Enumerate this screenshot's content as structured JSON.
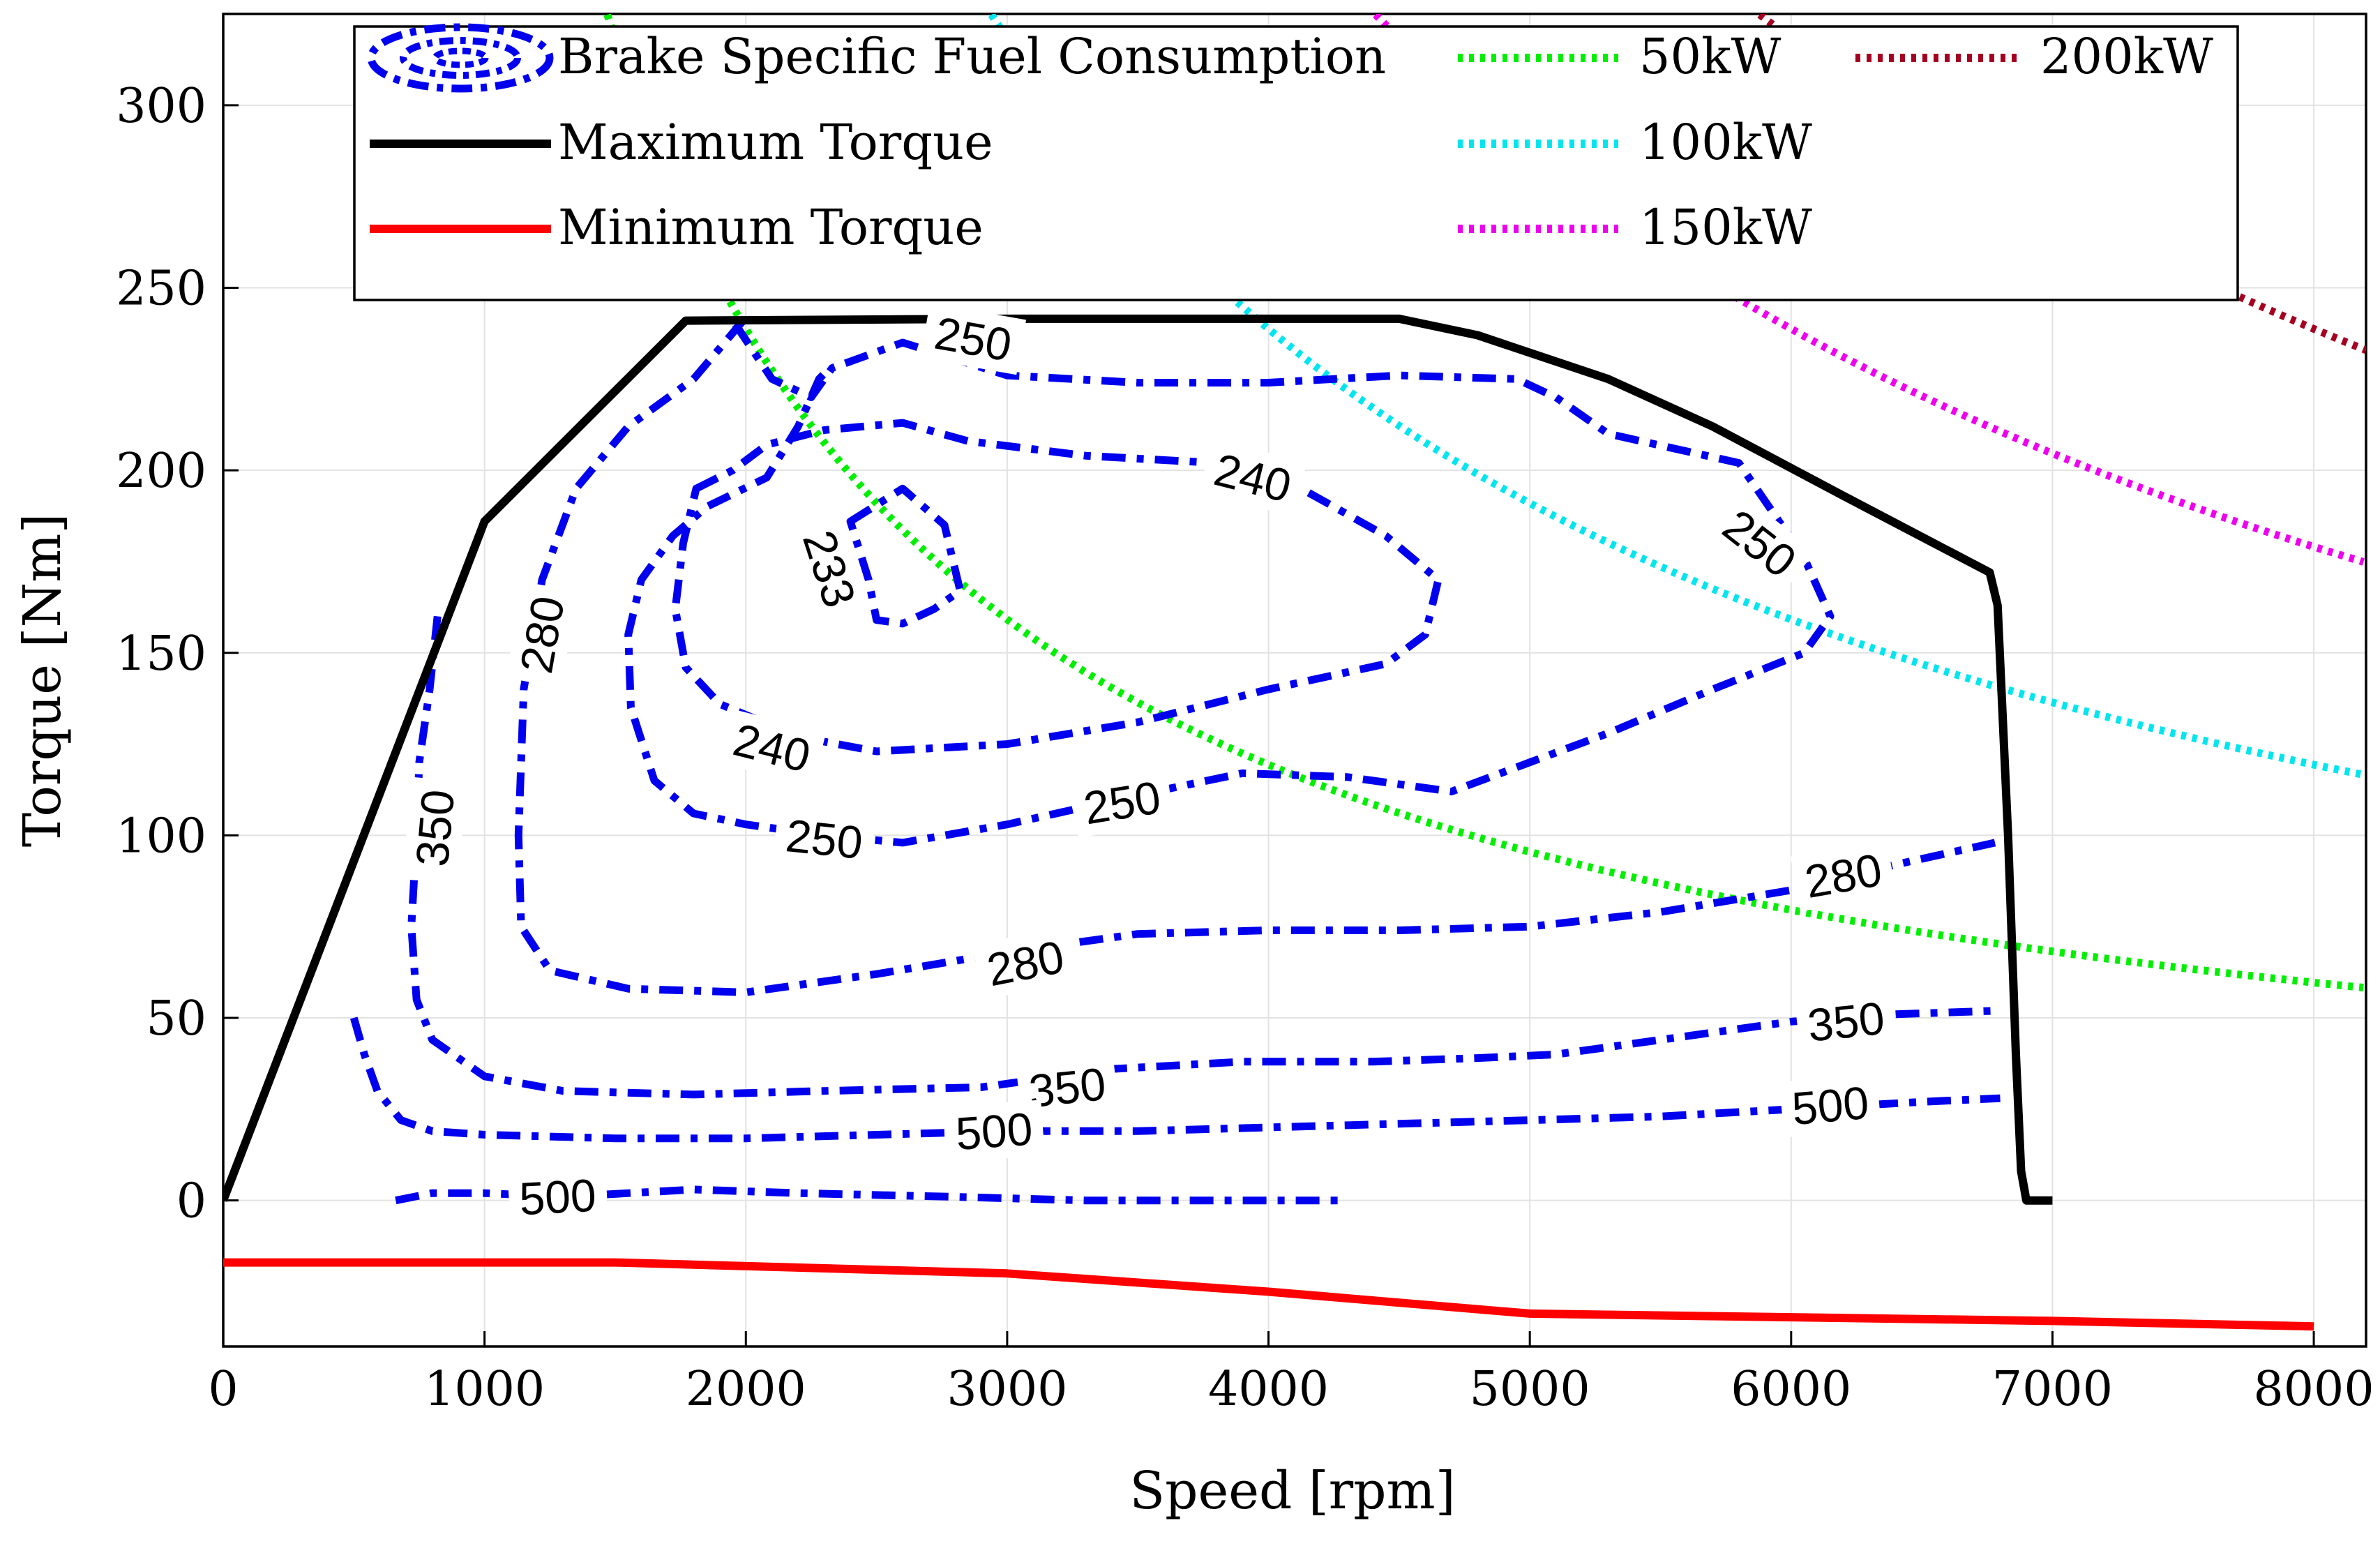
{
  "chart_data": {
    "type": "line",
    "title": "",
    "xlabel": "Speed [rpm]",
    "ylabel": "Torque [Nm]",
    "xlim": [
      0,
      8200
    ],
    "ylim": [
      -40,
      325
    ],
    "grid": true,
    "legend_position": "top",
    "x_ticks": [
      {
        "value": 0,
        "label": "0"
      },
      {
        "value": 1000,
        "label": "1000"
      },
      {
        "value": 2000,
        "label": "2000"
      },
      {
        "value": 3000,
        "label": "3000"
      },
      {
        "value": 4000,
        "label": "4000"
      },
      {
        "value": 5000,
        "label": "5000"
      },
      {
        "value": 6000,
        "label": "6000"
      },
      {
        "value": 7000,
        "label": "7000"
      },
      {
        "value": 8000,
        "label": "8000"
      }
    ],
    "y_ticks": [
      {
        "value": 0,
        "label": "0"
      },
      {
        "value": 50,
        "label": "50"
      },
      {
        "value": 100,
        "label": "100"
      },
      {
        "value": 150,
        "label": "150"
      },
      {
        "value": 200,
        "label": "200"
      },
      {
        "value": 250,
        "label": "250"
      },
      {
        "value": 300,
        "label": "300"
      }
    ],
    "colors": {
      "bsfc": "#0000ee",
      "max_torque": "#000000",
      "min_torque": "#ff0000",
      "p50": "#00ee00",
      "p100": "#00e5ee",
      "p150": "#ee00ee",
      "p200": "#a50021"
    },
    "legend": [
      {
        "key": "bsfc",
        "label": "Brake Specific Fuel Consumption"
      },
      {
        "key": "max_torque",
        "label": "Maximum Torque"
      },
      {
        "key": "min_torque",
        "label": "Minimum Torque"
      },
      {
        "key": "p50",
        "label": "50kW"
      },
      {
        "key": "p100",
        "label": "100kW"
      },
      {
        "key": "p150",
        "label": "150kW"
      },
      {
        "key": "p200",
        "label": "200kW"
      }
    ],
    "max_torque": {
      "name": "Maximum Torque",
      "points": [
        [
          0,
          0
        ],
        [
          1000,
          186
        ],
        [
          1770,
          241
        ],
        [
          3000,
          241.5
        ],
        [
          4500,
          241.5
        ],
        [
          4800,
          237
        ],
        [
          5300,
          225
        ],
        [
          5700,
          212
        ],
        [
          6200,
          193
        ],
        [
          6760,
          172
        ],
        [
          6790,
          163
        ],
        [
          6830,
          100
        ],
        [
          6860,
          40
        ],
        [
          6880,
          8
        ],
        [
          6900,
          0
        ],
        [
          7000,
          0
        ]
      ]
    },
    "min_torque": {
      "name": "Minimum Torque",
      "points": [
        [
          0,
          -17
        ],
        [
          1500,
          -17
        ],
        [
          3000,
          -20
        ],
        [
          4000,
          -25
        ],
        [
          5000,
          -31
        ],
        [
          6000,
          -32
        ],
        [
          7000,
          -33
        ],
        [
          8000,
          -34.5
        ]
      ]
    },
    "power_lines": [
      {
        "name": "50kW",
        "power_kw": 50,
        "x_range": [
          1470,
          8200
        ]
      },
      {
        "name": "100kW",
        "power_kw": 100,
        "x_range": [
          2940,
          8200
        ]
      },
      {
        "name": "150kW",
        "power_kw": 150,
        "x_range": [
          4410,
          8200
        ]
      },
      {
        "name": "200kW",
        "power_kw": 200,
        "x_range": [
          5880,
          8200
        ]
      }
    ],
    "bsfc_contours": [
      {
        "level": "233",
        "closed": true,
        "points": [
          [
            2400,
            186
          ],
          [
            2600,
            195
          ],
          [
            2760,
            185
          ],
          [
            2820,
            167
          ],
          [
            2720,
            162
          ],
          [
            2600,
            158
          ],
          [
            2500,
            159
          ],
          [
            2470,
            170
          ]
        ]
      },
      {
        "level": "240",
        "closed": true,
        "points": [
          [
            1810,
            195
          ],
          [
            1950,
            200
          ],
          [
            2080,
            207
          ],
          [
            2300,
            211
          ],
          [
            2600,
            213
          ],
          [
            2850,
            208
          ],
          [
            3300,
            204
          ],
          [
            3800,
            202
          ],
          [
            4100,
            196
          ],
          [
            4450,
            182
          ],
          [
            4650,
            170
          ],
          [
            4600,
            155
          ],
          [
            4450,
            147
          ],
          [
            4000,
            140
          ],
          [
            3500,
            131
          ],
          [
            3000,
            125
          ],
          [
            2500,
            123
          ],
          [
            2200,
            127
          ],
          [
            1900,
            136
          ],
          [
            1770,
            146
          ],
          [
            1730,
            162
          ],
          [
            1760,
            180
          ]
        ]
      },
      {
        "level": "250",
        "closed": false,
        "points": [
          [
            1960,
            240
          ],
          [
            2100,
            225
          ],
          [
            2250,
            220
          ],
          [
            2330,
            228
          ],
          [
            2600,
            235
          ],
          [
            3000,
            226
          ],
          [
            3500,
            224
          ],
          [
            4000,
            224
          ],
          [
            4500,
            226
          ],
          [
            4950,
            225
          ],
          [
            5100,
            220
          ],
          [
            5300,
            210
          ],
          [
            5800,
            202
          ],
          [
            6050,
            176
          ],
          [
            6150,
            160
          ],
          [
            6050,
            150
          ],
          [
            5700,
            140
          ],
          [
            5300,
            128
          ],
          [
            5000,
            120
          ],
          [
            4700,
            112
          ],
          [
            4300,
            116
          ],
          [
            3900,
            117
          ],
          [
            3500,
            111
          ],
          [
            3000,
            103
          ],
          [
            2600,
            98
          ],
          [
            2300,
            100
          ],
          [
            2000,
            103
          ],
          [
            1800,
            106
          ],
          [
            1650,
            115
          ],
          [
            1560,
            135
          ],
          [
            1550,
            155
          ],
          [
            1600,
            170
          ],
          [
            1720,
            182
          ],
          [
            1850,
            190
          ],
          [
            2080,
            198
          ],
          [
            2200,
            212
          ],
          [
            2280,
            225
          ],
          [
            2320,
            228
          ]
        ]
      },
      {
        "level": "280",
        "closed": false,
        "points": [
          [
            1990,
            241
          ],
          [
            1800,
            225
          ],
          [
            1550,
            212
          ],
          [
            1350,
            195
          ],
          [
            1220,
            170
          ],
          [
            1150,
            140
          ],
          [
            1130,
            100
          ],
          [
            1140,
            75
          ],
          [
            1250,
            63
          ],
          [
            1550,
            58
          ],
          [
            2000,
            57
          ],
          [
            2500,
            62
          ],
          [
            3000,
            68
          ],
          [
            3500,
            73
          ],
          [
            4000,
            74
          ],
          [
            4500,
            74
          ],
          [
            5000,
            75
          ],
          [
            5500,
            79
          ],
          [
            6000,
            85
          ],
          [
            6400,
            92
          ],
          [
            6780,
            98
          ]
        ]
      },
      {
        "level": "350",
        "closed": false,
        "points": [
          [
            820,
            160
          ],
          [
            790,
            140
          ],
          [
            750,
            120
          ],
          [
            740,
            100
          ],
          [
            720,
            75
          ],
          [
            740,
            55
          ],
          [
            800,
            44
          ],
          [
            1000,
            34
          ],
          [
            1300,
            30
          ],
          [
            1800,
            29
          ],
          [
            2300,
            30
          ],
          [
            2900,
            31
          ],
          [
            3400,
            36
          ],
          [
            3900,
            38
          ],
          [
            4400,
            38
          ],
          [
            4800,
            39
          ],
          [
            5100,
            40
          ],
          [
            5600,
            45
          ],
          [
            6000,
            49
          ],
          [
            6400,
            51
          ],
          [
            6800,
            52
          ]
        ]
      },
      {
        "level": "500",
        "closed": false,
        "points": [
          [
            500,
            50
          ],
          [
            540,
            40
          ],
          [
            590,
            30
          ],
          [
            680,
            22
          ],
          [
            800,
            19
          ],
          [
            1000,
            18
          ],
          [
            1500,
            17
          ],
          [
            2000,
            17
          ],
          [
            2500,
            18
          ],
          [
            3000,
            19
          ],
          [
            3500,
            19
          ],
          [
            4000,
            20
          ],
          [
            4500,
            21
          ],
          [
            5000,
            22
          ],
          [
            5500,
            23
          ],
          [
            6000,
            25
          ],
          [
            6500,
            27
          ],
          [
            6800,
            28
          ]
        ]
      },
      {
        "level": "500",
        "closed": false,
        "points": [
          [
            660,
            0
          ],
          [
            800,
            2
          ],
          [
            1000,
            2
          ],
          [
            1300,
            1
          ],
          [
            1800,
            3
          ],
          [
            2200,
            2
          ],
          [
            2800,
            1
          ],
          [
            3300,
            0
          ],
          [
            3800,
            0
          ],
          [
            4300,
            0
          ]
        ]
      }
    ],
    "contour_labels": [
      {
        "text": "233",
        "x": 2320,
        "y": 173,
        "angle": 72
      },
      {
        "text": "240",
        "x": 3940,
        "y": 198,
        "angle": 14
      },
      {
        "text": "240",
        "x": 2100,
        "y": 124,
        "angle": 14
      },
      {
        "text": "250",
        "x": 2870,
        "y": 236,
        "angle": 10
      },
      {
        "text": "250",
        "x": 5880,
        "y": 180,
        "angle": 38
      },
      {
        "text": "250",
        "x": 3440,
        "y": 109,
        "angle": -9
      },
      {
        "text": "250",
        "x": 2300,
        "y": 99,
        "angle": 6
      },
      {
        "text": "280",
        "x": 1220,
        "y": 155,
        "angle": -80
      },
      {
        "text": "280",
        "x": 3070,
        "y": 65,
        "angle": -11
      },
      {
        "text": "280",
        "x": 6200,
        "y": 89,
        "angle": -10
      },
      {
        "text": "350",
        "x": 810,
        "y": 102,
        "angle": -85
      },
      {
        "text": "350",
        "x": 3230,
        "y": 31,
        "angle": -6
      },
      {
        "text": "350",
        "x": 6210,
        "y": 49,
        "angle": -6
      },
      {
        "text": "500",
        "x": 2950,
        "y": 19,
        "angle": -4
      },
      {
        "text": "500",
        "x": 6150,
        "y": 26,
        "angle": -5
      },
      {
        "text": "500",
        "x": 1280,
        "y": 1,
        "angle": -3
      }
    ]
  }
}
